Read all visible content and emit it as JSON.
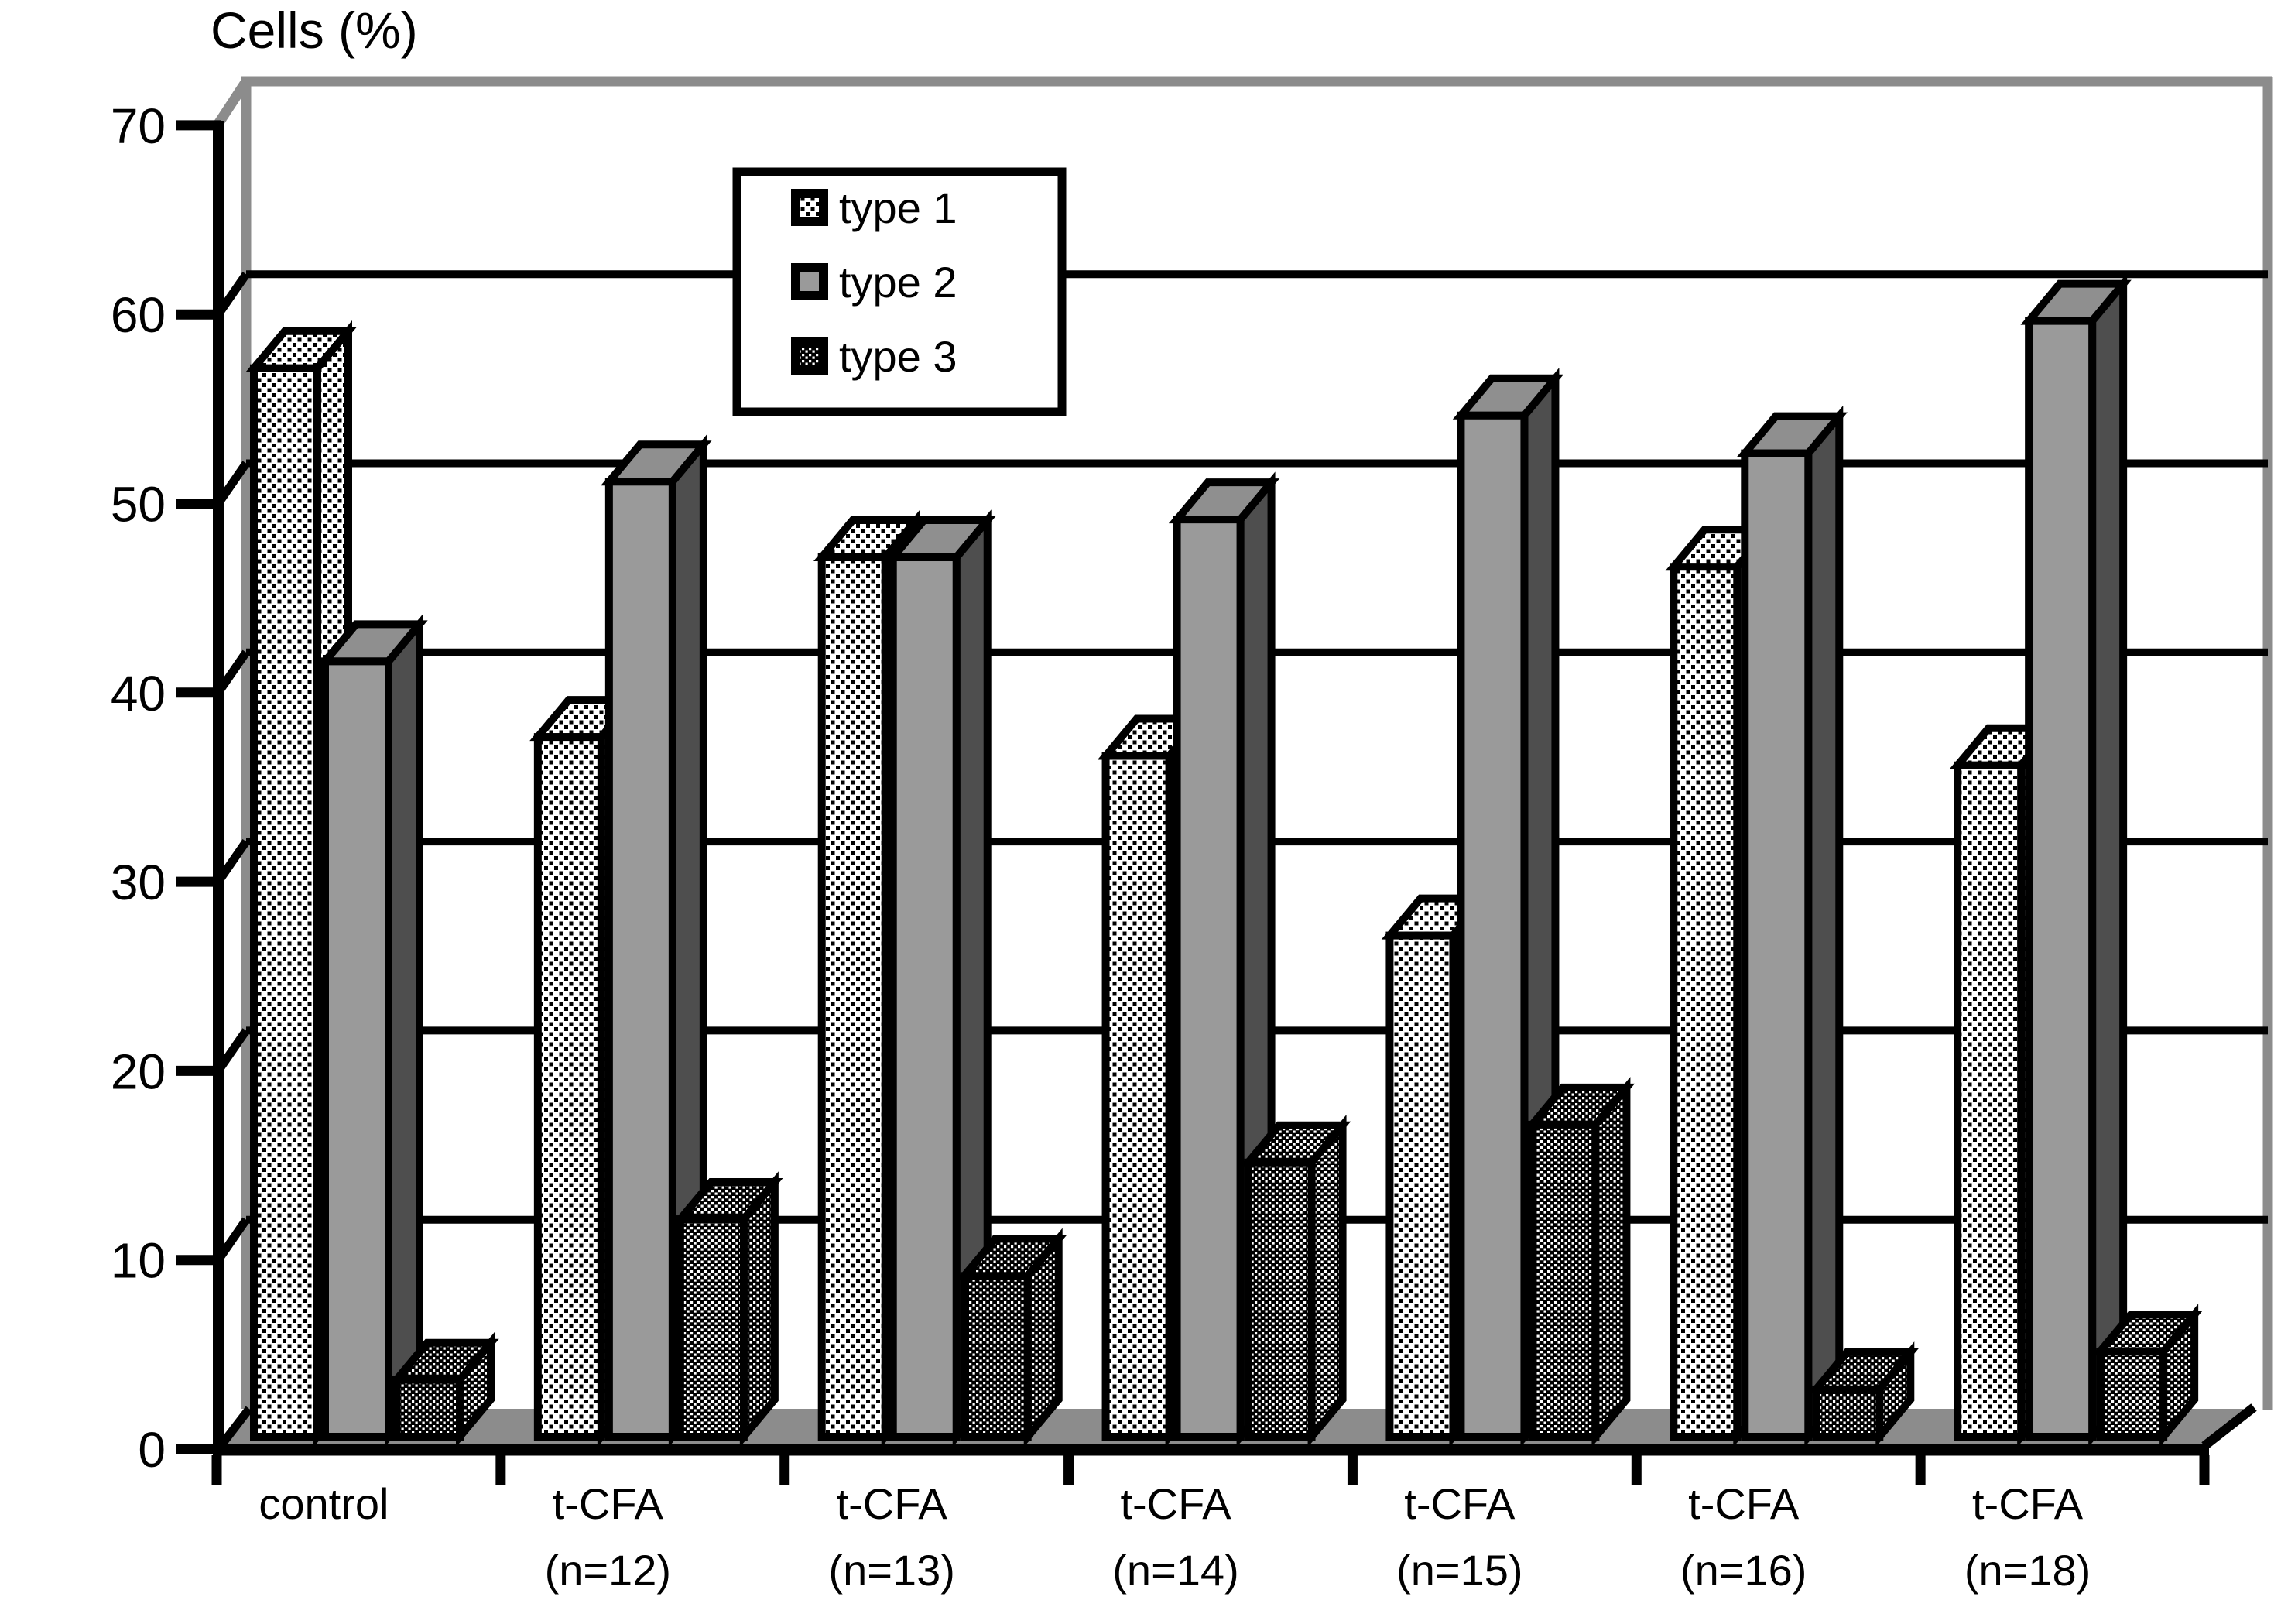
{
  "title": "Cells (%)",
  "chart_data": {
    "type": "bar",
    "projection": "3d",
    "title": "Cells (%)",
    "ylabel": "Cells (%)",
    "ylim": [
      0,
      70
    ],
    "yticks": [
      0,
      10,
      20,
      30,
      40,
      50,
      60,
      70
    ],
    "grid": true,
    "legend_position": "top-center",
    "categories": [
      {
        "line1": "control",
        "line2": ""
      },
      {
        "line1": "t-CFA",
        "line2": "(n=12)"
      },
      {
        "line1": "t-CFA",
        "line2": "(n=13)"
      },
      {
        "line1": "t-CFA",
        "line2": "(n=14)"
      },
      {
        "line1": "t-CFA",
        "line2": "(n=15)"
      },
      {
        "line1": "t-CFA",
        "line2": "(n=16)"
      },
      {
        "line1": "t-CFA",
        "line2": "(n=18)"
      }
    ],
    "series": [
      {
        "name": "type 1",
        "pattern": "black-dots-on-white",
        "values": [
          56.5,
          37,
          46.5,
          36,
          26.5,
          46,
          35.5
        ]
      },
      {
        "name": "type 2",
        "pattern": "solid-gray",
        "values": [
          41,
          50.5,
          46.5,
          48.5,
          54,
          52,
          59
        ]
      },
      {
        "name": "type 3",
        "pattern": "white-dots-on-black",
        "values": [
          3,
          11.5,
          8.5,
          14.5,
          16.5,
          2.5,
          4.5
        ]
      }
    ]
  },
  "legend": {
    "items": [
      {
        "label": "type 1",
        "swatch": "black-dots-on-white"
      },
      {
        "label": "type 2",
        "swatch": "solid-gray"
      },
      {
        "label": "type 3",
        "swatch": "white-dots-on-black"
      }
    ]
  },
  "colors": {
    "series2_front": "#9A9A9A",
    "series2_side": "#4E4E4E",
    "series2_top": "#8F8F8F",
    "floor": "#8C8C8C",
    "frame_gray": "#8C8C8C",
    "line_black": "#000000",
    "background": "#FFFFFF"
  }
}
